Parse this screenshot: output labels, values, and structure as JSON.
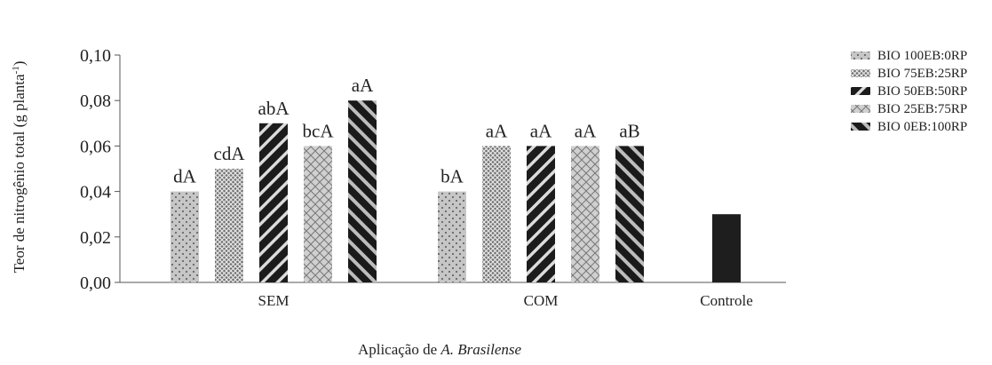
{
  "chart_data": {
    "type": "bar",
    "ylabel": "Teor de nitrogênio total (g planta",
    "ylabel_sup": "-1",
    "ylabel_close": ")",
    "xlabel_prefix": "Aplicação de ",
    "xlabel_italic": "A. Brasilense",
    "ylim": [
      0,
      0.1
    ],
    "yticks": [
      "0,00",
      "0,02",
      "0,04",
      "0,06",
      "0,08",
      "0,10"
    ],
    "groups": [
      {
        "label": "SEM",
        "bars": [
          {
            "series": "BIO 100EB:0RP",
            "value": 0.04,
            "annotation": "dA"
          },
          {
            "series": "BIO 75EB:25RP",
            "value": 0.05,
            "annotation": "cdA"
          },
          {
            "series": "BIO 50EB:50RP",
            "value": 0.07,
            "annotation": "abA"
          },
          {
            "series": "BIO 25EB:75RP",
            "value": 0.06,
            "annotation": "bcA"
          },
          {
            "series": "BIO 0EB:100RP",
            "value": 0.08,
            "annotation": "aA"
          }
        ]
      },
      {
        "label": "COM",
        "bars": [
          {
            "series": "BIO 100EB:0RP",
            "value": 0.04,
            "annotation": "bA"
          },
          {
            "series": "BIO 75EB:25RP",
            "value": 0.06,
            "annotation": "aA"
          },
          {
            "series": "BIO 50EB:50RP",
            "value": 0.06,
            "annotation": "aA"
          },
          {
            "series": "BIO 25EB:75RP",
            "value": 0.06,
            "annotation": "aA"
          },
          {
            "series": "BIO 0EB:100RP",
            "value": 0.06,
            "annotation": "aB"
          }
        ]
      },
      {
        "label": "Controle",
        "bars": [
          {
            "series": "Controle",
            "value": 0.03,
            "annotation": ""
          }
        ]
      }
    ],
    "legend": [
      {
        "label": "BIO 100EB:0RP",
        "pattern": "dots"
      },
      {
        "label": "BIO 75EB:25RP",
        "pattern": "mesh"
      },
      {
        "label": "BIO 50EB:50RP",
        "pattern": "diag-dark"
      },
      {
        "label": "BIO 25EB:75RP",
        "pattern": "lattice"
      },
      {
        "label": "BIO 0EB:100RP",
        "pattern": "diag-wide"
      }
    ],
    "legend_position": "right",
    "grid": false,
    "colors": {
      "bar_light": "#c4c4c4",
      "bar_dark": "#1e1e1e",
      "axis": "#555555"
    }
  }
}
